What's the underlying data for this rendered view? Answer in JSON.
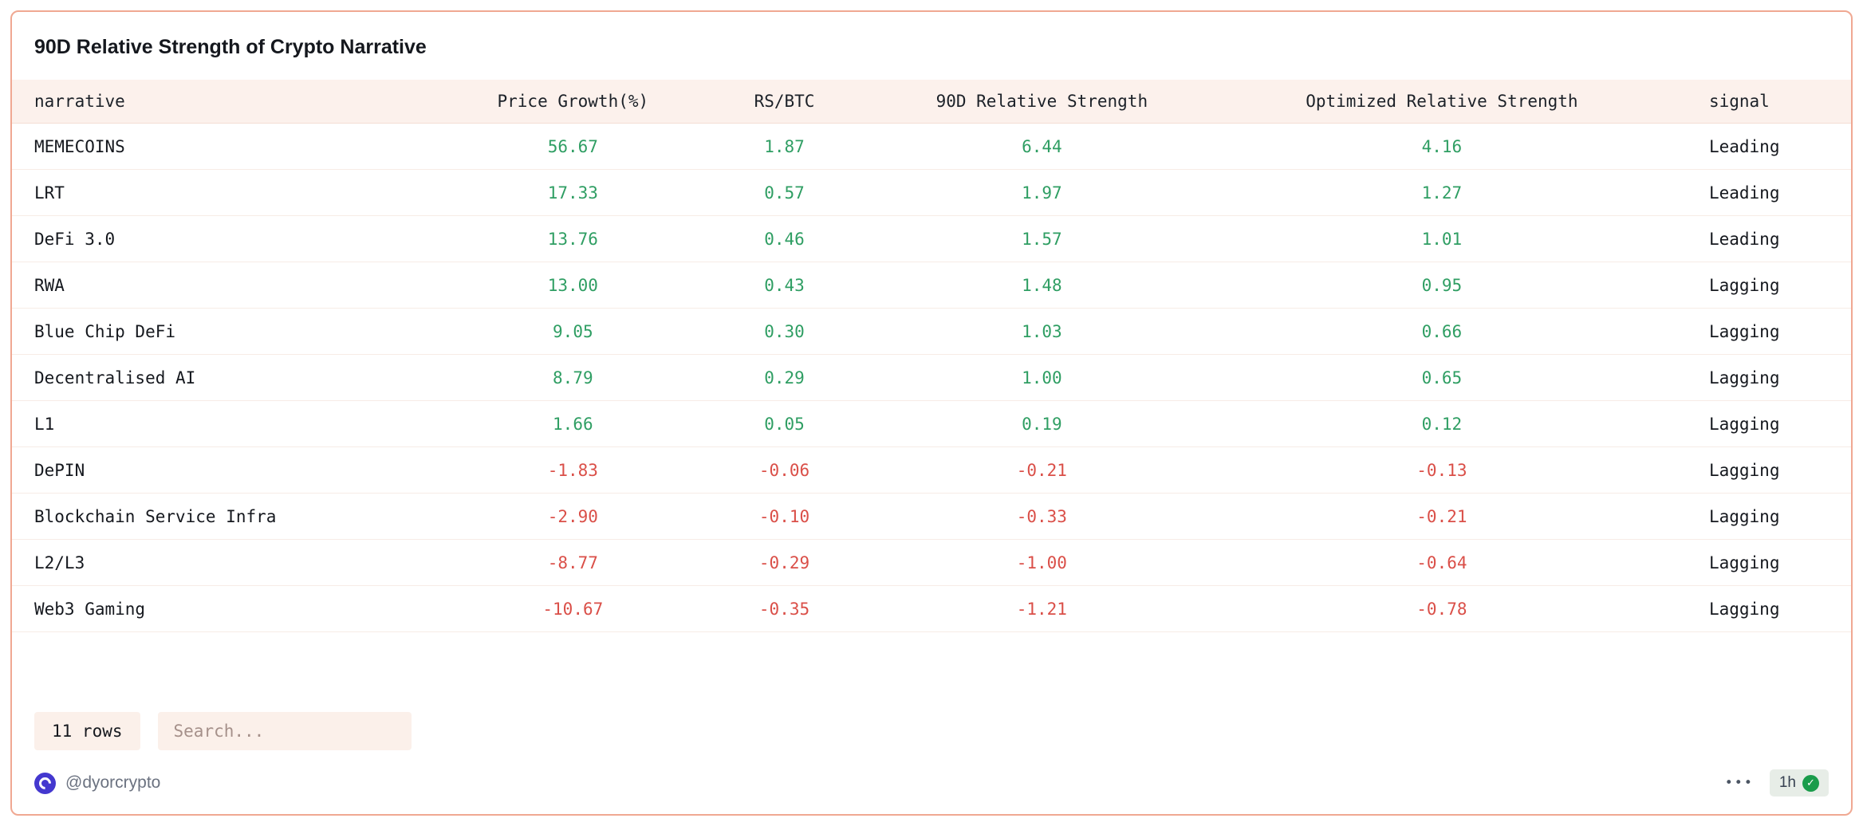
{
  "title": "90D Relative Strength of Crypto Narrative",
  "colors": {
    "positive": "#2f9e63",
    "negative": "#da4f48"
  },
  "table": {
    "columns": [
      "narrative",
      "Price Growth(%)",
      "RS/BTC",
      "90D Relative Strength",
      "Optimized Relative Strength",
      "signal"
    ],
    "rows": [
      [
        "MEMECOINS",
        "56.67",
        "1.87",
        "6.44",
        "4.16",
        "Leading"
      ],
      [
        "LRT",
        "17.33",
        "0.57",
        "1.97",
        "1.27",
        "Leading"
      ],
      [
        "DeFi 3.0",
        "13.76",
        "0.46",
        "1.57",
        "1.01",
        "Leading"
      ],
      [
        "RWA",
        "13.00",
        "0.43",
        "1.48",
        "0.95",
        "Lagging"
      ],
      [
        "Blue Chip DeFi",
        "9.05",
        "0.30",
        "1.03",
        "0.66",
        "Lagging"
      ],
      [
        "Decentralised AI",
        "8.79",
        "0.29",
        "1.00",
        "0.65",
        "Lagging"
      ],
      [
        "L1",
        "1.66",
        "0.05",
        "0.19",
        "0.12",
        "Lagging"
      ],
      [
        "DePIN",
        "-1.83",
        "-0.06",
        "-0.21",
        "-0.13",
        "Lagging"
      ],
      [
        "Blockchain Service Infra",
        "-2.90",
        "-0.10",
        "-0.33",
        "-0.21",
        "Lagging"
      ],
      [
        "L2/L3",
        "-8.77",
        "-0.29",
        "-1.00",
        "-0.64",
        "Lagging"
      ],
      [
        "Web3 Gaming",
        "-10.67",
        "-0.35",
        "-1.21",
        "-0.78",
        "Lagging"
      ]
    ]
  },
  "controls": {
    "rows_button_label": "11 rows",
    "search_placeholder": "Search..."
  },
  "footer": {
    "handle": "@dyorcrypto",
    "menu_label": "•••",
    "time_badge": "1h"
  }
}
